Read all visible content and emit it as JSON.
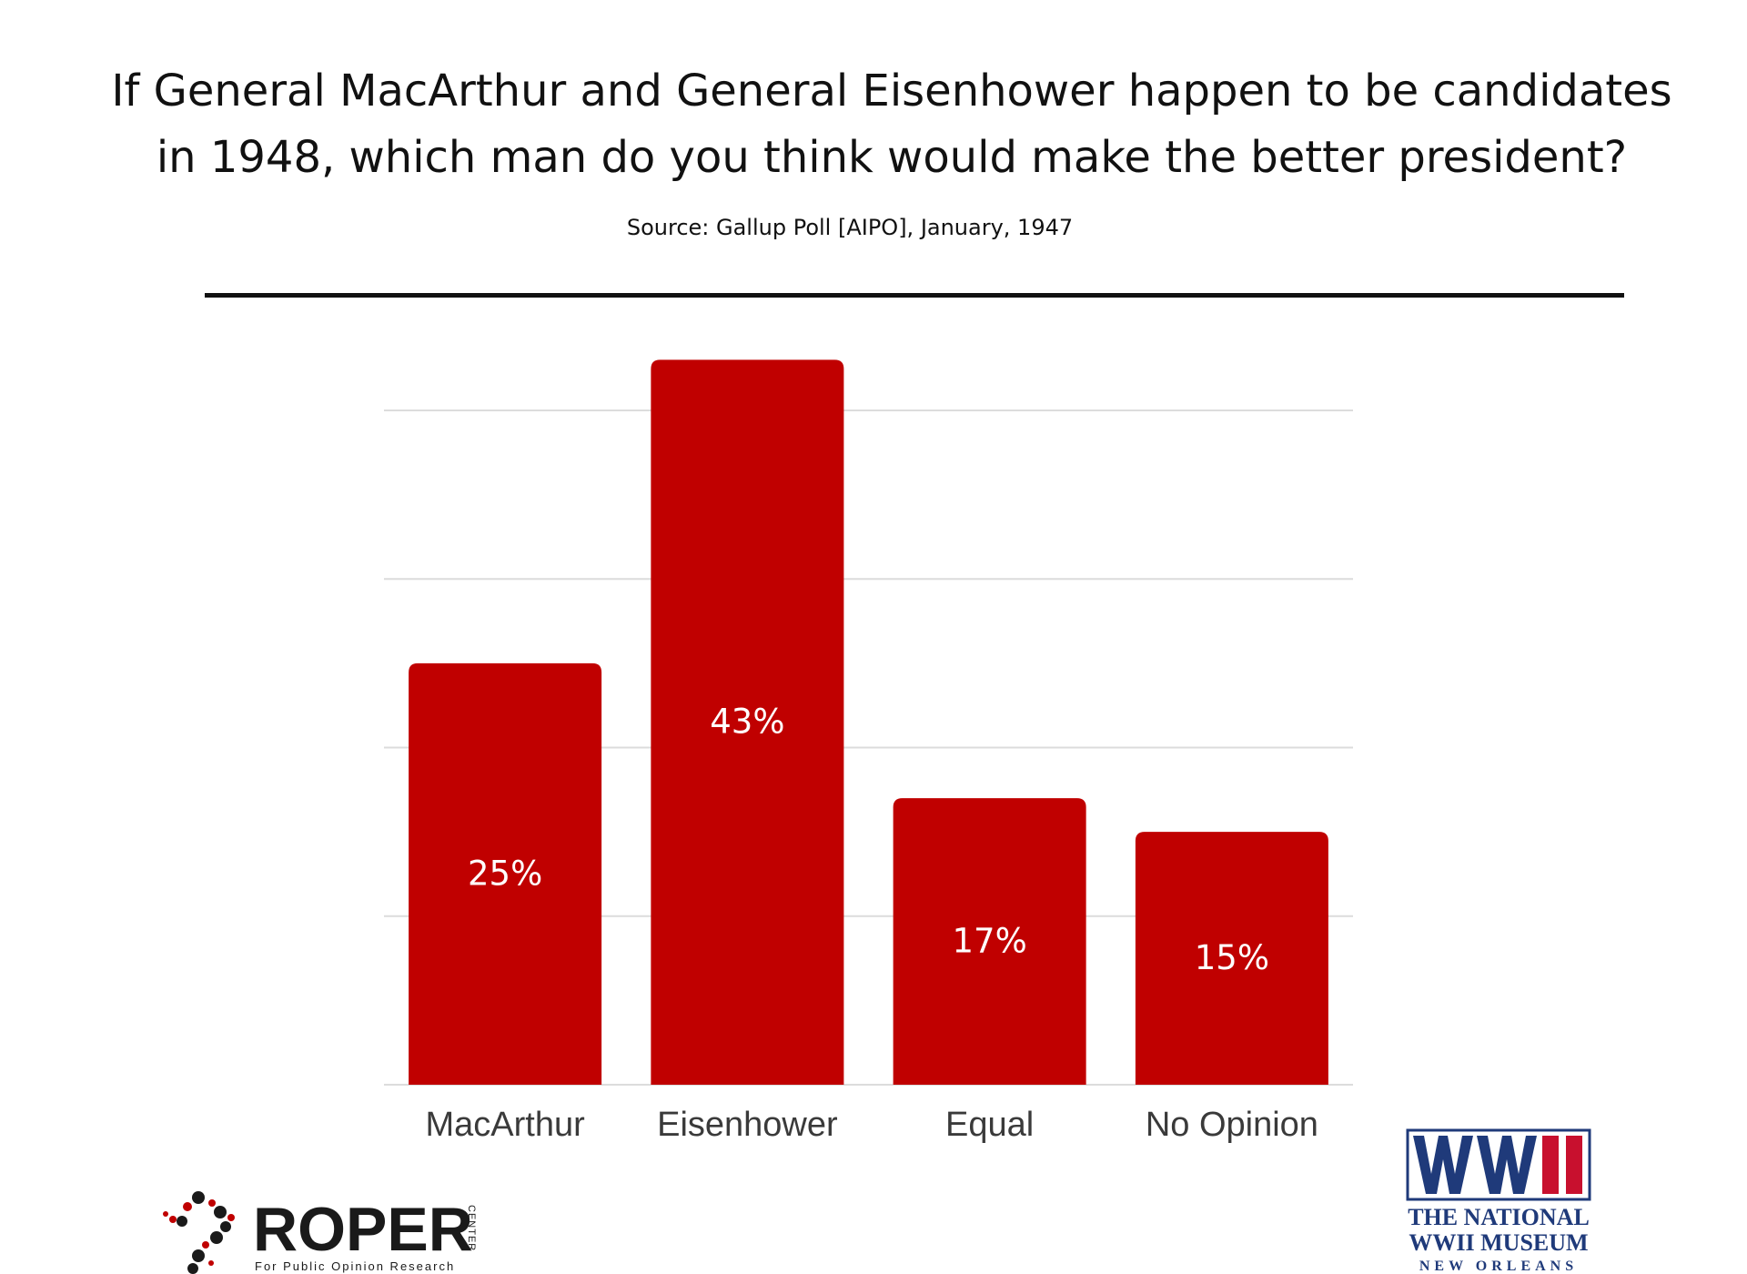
{
  "chart_data": {
    "type": "bar",
    "title_lines": [
      "If General MacArthur and General Eisenhower happen to be candidates",
      "in 1948, which man do you think would make the better president?"
    ],
    "source": "Source: Gallup Poll [AIPO], January, 1947",
    "categories": [
      "MacArthur",
      "Eisenhower",
      "Equal",
      "No Opinion"
    ],
    "values": [
      25,
      43,
      17,
      15
    ],
    "value_labels": [
      "25%",
      "43%",
      "17%",
      "15%"
    ],
    "ylim": [
      0,
      40
    ],
    "ytick_values": [
      0,
      10,
      20,
      30,
      40
    ],
    "grid": true,
    "bar_color": "#c00000",
    "gridline_color": "#dcdcdc"
  },
  "logos": {
    "roper": {
      "name": "ROPER",
      "side_text": "CENTER",
      "tagline": "For Public Opinion Research"
    },
    "museum": {
      "mark": "WWII",
      "line1": "THE NATIONAL",
      "line2": "WWII MUSEUM",
      "line3": "NEW ORLEANS"
    }
  }
}
